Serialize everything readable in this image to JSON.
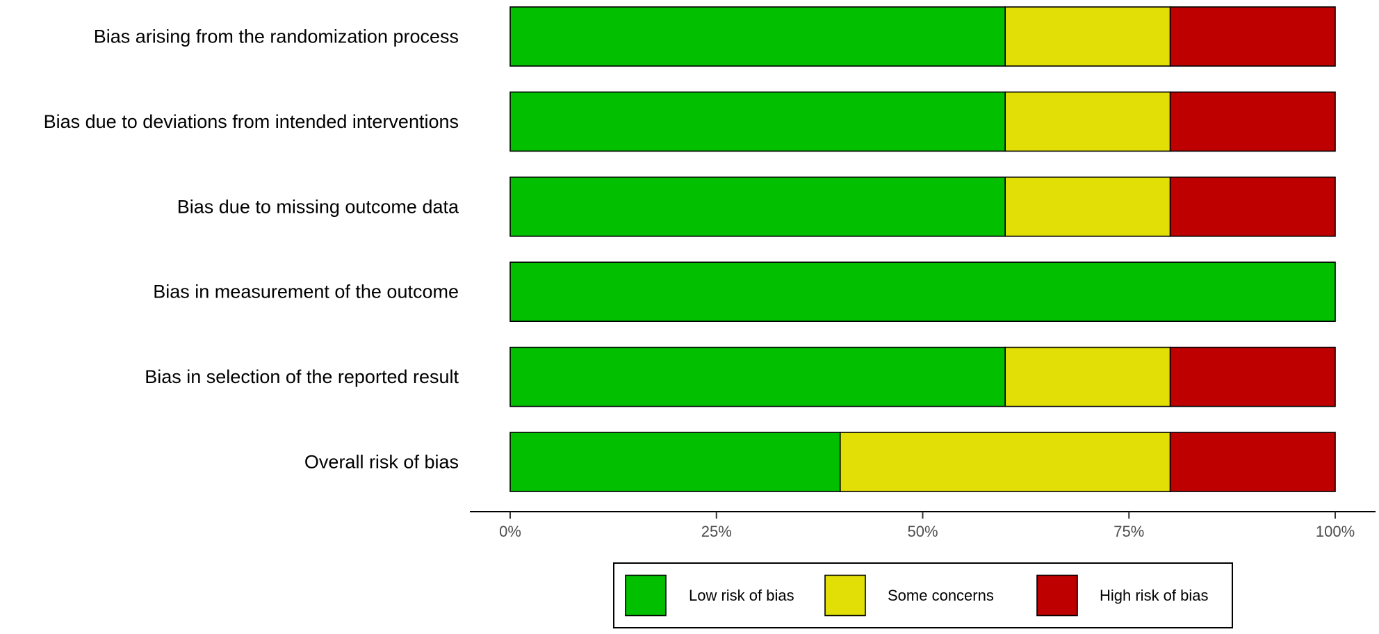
{
  "chart_data": {
    "type": "bar",
    "orientation": "horizontal",
    "stacked": true,
    "categories": [
      "Bias arising from the randomization process",
      "Bias due to deviations from intended interventions",
      "Bias due to missing outcome data",
      "Bias in measurement of the outcome",
      "Bias in selection of the reported result",
      "Overall risk of bias"
    ],
    "series": [
      {
        "name": "Low risk of bias",
        "color": "#02c000",
        "values": [
          60,
          60,
          60,
          100,
          60,
          40
        ]
      },
      {
        "name": "Some concerns",
        "color": "#e2df07",
        "values": [
          20,
          20,
          20,
          0,
          20,
          40
        ]
      },
      {
        "name": "High risk of bias",
        "color": "#bf0000",
        "values": [
          20,
          20,
          20,
          0,
          20,
          20
        ]
      }
    ],
    "xlim": [
      0,
      100
    ],
    "x_ticks": [
      0,
      25,
      50,
      75,
      100
    ],
    "x_tick_labels": [
      "0%",
      "25%",
      "50%",
      "75%",
      "100%"
    ],
    "title": "",
    "xlabel": "",
    "ylabel": "",
    "grid": false,
    "legend": {
      "position": "bottom",
      "entries": [
        "Low risk of bias",
        "Some concerns",
        "High risk of bias"
      ]
    }
  }
}
